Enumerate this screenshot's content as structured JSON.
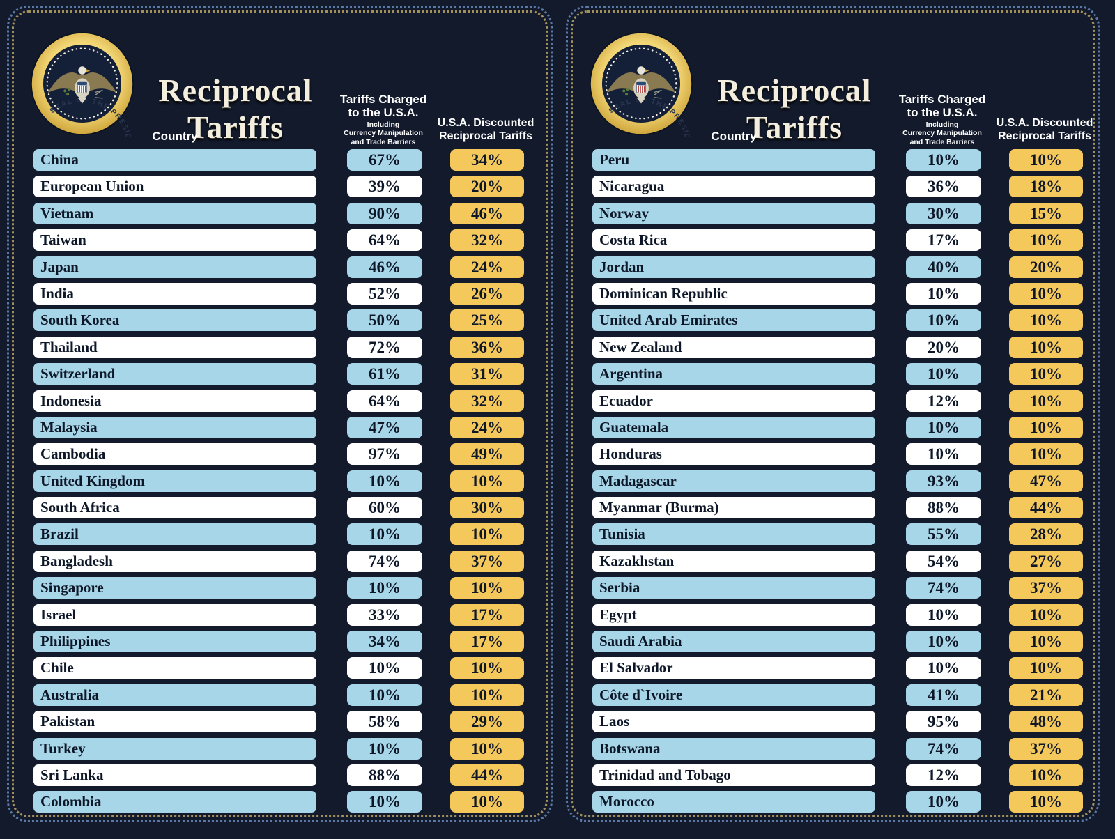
{
  "poster": {
    "title": "Reciprocal Tariffs",
    "seal_ring_text": "SEAL OF THE PRESIDENT OF THE UNITED STATES •",
    "column_headers": {
      "country": "Country",
      "charged_main": "Tariffs Charged\nto the U.S.A.",
      "charged_sub": "Including\nCurrency Manipulation\nand Trade Barriers",
      "discounted": "U.S.A. Discounted\nReciprocal Tariffs"
    }
  },
  "colors": {
    "background": "#121a2c",
    "bar_blue": "#a7d6e8",
    "bar_white": "#ffffff",
    "box_gold": "#f5c85c",
    "text_dark": "#0d1728",
    "border_blue_dots": "#5b79a4",
    "border_gold_dots": "#a2905c",
    "seal_gold": "#e9c64f",
    "title_cream": "#f3eedd"
  },
  "chart_data": {
    "type": "table",
    "title": "Reciprocal Tariffs",
    "columns": [
      "Country",
      "Tariffs Charged to the U.S.A. Including Currency Manipulation and Trade Barriers",
      "U.S.A. Discounted Reciprocal Tariffs"
    ],
    "panels": [
      {
        "rows": [
          {
            "country": "China",
            "charged": "67%",
            "discounted": "34%"
          },
          {
            "country": "European Union",
            "charged": "39%",
            "discounted": "20%"
          },
          {
            "country": "Vietnam",
            "charged": "90%",
            "discounted": "46%"
          },
          {
            "country": "Taiwan",
            "charged": "64%",
            "discounted": "32%"
          },
          {
            "country": "Japan",
            "charged": "46%",
            "discounted": "24%"
          },
          {
            "country": "India",
            "charged": "52%",
            "discounted": "26%"
          },
          {
            "country": "South Korea",
            "charged": "50%",
            "discounted": "25%"
          },
          {
            "country": "Thailand",
            "charged": "72%",
            "discounted": "36%"
          },
          {
            "country": "Switzerland",
            "charged": "61%",
            "discounted": "31%"
          },
          {
            "country": "Indonesia",
            "charged": "64%",
            "discounted": "32%"
          },
          {
            "country": "Malaysia",
            "charged": "47%",
            "discounted": "24%"
          },
          {
            "country": "Cambodia",
            "charged": "97%",
            "discounted": "49%"
          },
          {
            "country": "United Kingdom",
            "charged": "10%",
            "discounted": "10%"
          },
          {
            "country": "South Africa",
            "charged": "60%",
            "discounted": "30%"
          },
          {
            "country": "Brazil",
            "charged": "10%",
            "discounted": "10%"
          },
          {
            "country": "Bangladesh",
            "charged": "74%",
            "discounted": "37%"
          },
          {
            "country": "Singapore",
            "charged": "10%",
            "discounted": "10%"
          },
          {
            "country": "Israel",
            "charged": "33%",
            "discounted": "17%"
          },
          {
            "country": "Philippines",
            "charged": "34%",
            "discounted": "17%"
          },
          {
            "country": "Chile",
            "charged": "10%",
            "discounted": "10%"
          },
          {
            "country": "Australia",
            "charged": "10%",
            "discounted": "10%"
          },
          {
            "country": "Pakistan",
            "charged": "58%",
            "discounted": "29%"
          },
          {
            "country": "Turkey",
            "charged": "10%",
            "discounted": "10%"
          },
          {
            "country": "Sri Lanka",
            "charged": "88%",
            "discounted": "44%"
          },
          {
            "country": "Colombia",
            "charged": "10%",
            "discounted": "10%"
          }
        ]
      },
      {
        "rows": [
          {
            "country": "Peru",
            "charged": "10%",
            "discounted": "10%"
          },
          {
            "country": "Nicaragua",
            "charged": "36%",
            "discounted": "18%"
          },
          {
            "country": "Norway",
            "charged": "30%",
            "discounted": "15%"
          },
          {
            "country": "Costa Rica",
            "charged": "17%",
            "discounted": "10%"
          },
          {
            "country": "Jordan",
            "charged": "40%",
            "discounted": "20%"
          },
          {
            "country": "Dominican Republic",
            "charged": "10%",
            "discounted": "10%"
          },
          {
            "country": "United Arab Emirates",
            "charged": "10%",
            "discounted": "10%"
          },
          {
            "country": "New Zealand",
            "charged": "20%",
            "discounted": "10%"
          },
          {
            "country": "Argentina",
            "charged": "10%",
            "discounted": "10%"
          },
          {
            "country": "Ecuador",
            "charged": "12%",
            "discounted": "10%"
          },
          {
            "country": "Guatemala",
            "charged": "10%",
            "discounted": "10%"
          },
          {
            "country": "Honduras",
            "charged": "10%",
            "discounted": "10%"
          },
          {
            "country": "Madagascar",
            "charged": "93%",
            "discounted": "47%"
          },
          {
            "country": "Myanmar (Burma)",
            "charged": "88%",
            "discounted": "44%"
          },
          {
            "country": "Tunisia",
            "charged": "55%",
            "discounted": "28%"
          },
          {
            "country": "Kazakhstan",
            "charged": "54%",
            "discounted": "27%"
          },
          {
            "country": "Serbia",
            "charged": "74%",
            "discounted": "37%"
          },
          {
            "country": "Egypt",
            "charged": "10%",
            "discounted": "10%"
          },
          {
            "country": "Saudi Arabia",
            "charged": "10%",
            "discounted": "10%"
          },
          {
            "country": "El Salvador",
            "charged": "10%",
            "discounted": "10%"
          },
          {
            "country": "Côte d`Ivoire",
            "charged": "41%",
            "discounted": "21%"
          },
          {
            "country": "Laos",
            "charged": "95%",
            "discounted": "48%"
          },
          {
            "country": "Botswana",
            "charged": "74%",
            "discounted": "37%"
          },
          {
            "country": "Trinidad and Tobago",
            "charged": "12%",
            "discounted": "10%"
          },
          {
            "country": "Morocco",
            "charged": "10%",
            "discounted": "10%"
          }
        ]
      }
    ]
  }
}
